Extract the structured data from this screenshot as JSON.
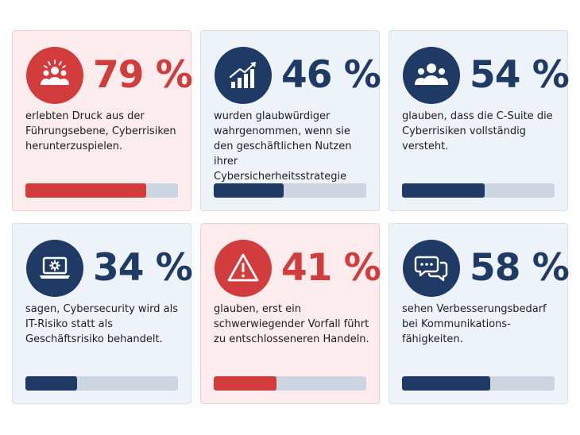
{
  "stats": [
    {
      "value": "79 %",
      "fraction": 0.79,
      "text": "erlebten Druck aus der Führungsebene, Cyberrisiken herunterzuspielen.",
      "icon": "pressured-group-icon",
      "accent": "#d23c3c"
    },
    {
      "value": "46 %",
      "fraction": 0.46,
      "text": "wurden glaubwürdiger wahrgenommen, wenn sie den geschäftlichen Nutzen ihrer Cybersicherheitsstrategie messen konnten.",
      "icon": "growth-chart-icon",
      "accent": "#1f3a64"
    },
    {
      "value": "54 %",
      "fraction": 0.54,
      "text": "glauben, dass die C-Suite die Cyberrisiken vollständig versteht.",
      "icon": "people-group-icon",
      "accent": "#1f3a64"
    },
    {
      "value": "34 %",
      "fraction": 0.34,
      "text": "sagen, Cybersecurity wird als IT-Risiko statt als Geschäftsrisiko behandelt.",
      "icon": "laptop-gear-icon",
      "accent": "#1f3a64"
    },
    {
      "value": "41 %",
      "fraction": 0.41,
      "text": "glauben, erst ein schwerwiegender Vorfall führt zu entschlosseneren Handeln.",
      "icon": "warning-triangle-icon",
      "accent": "#d23c3c"
    },
    {
      "value": "58 %",
      "fraction": 0.58,
      "text": "sehen Verbesserungsbedarf bei Kommunikations-fähigkeiten.",
      "icon": "chat-bubbles-icon",
      "accent": "#1f3a64"
    }
  ]
}
